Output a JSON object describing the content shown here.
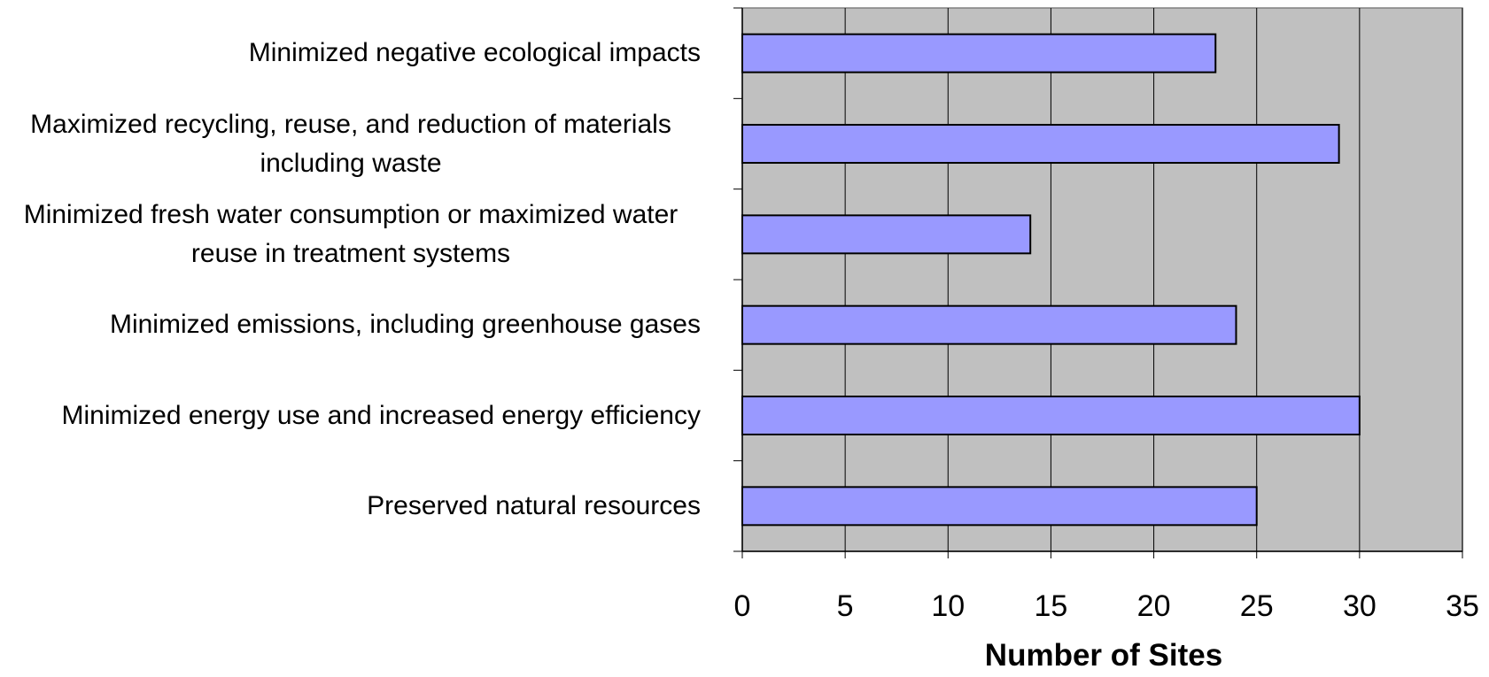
{
  "chart_data": {
    "type": "bar",
    "orientation": "horizontal",
    "categories": [
      "Minimized negative ecological impacts",
      "Maximized recycling, reuse, and reduction of materials including waste",
      "Minimized fresh water consumption or maximized water reuse in treatment systems",
      "Minimized emissions, including greenhouse gases",
      "Minimized energy use and increased energy efficiency",
      "Preserved natural resources"
    ],
    "values": [
      23,
      29,
      14,
      24,
      30,
      25
    ],
    "color": "#9999ff",
    "x_label": "Number of Sites",
    "xlim": [
      0,
      35
    ],
    "xticks": [
      0,
      5,
      10,
      15,
      20,
      25,
      30,
      35
    ],
    "grid": true
  }
}
